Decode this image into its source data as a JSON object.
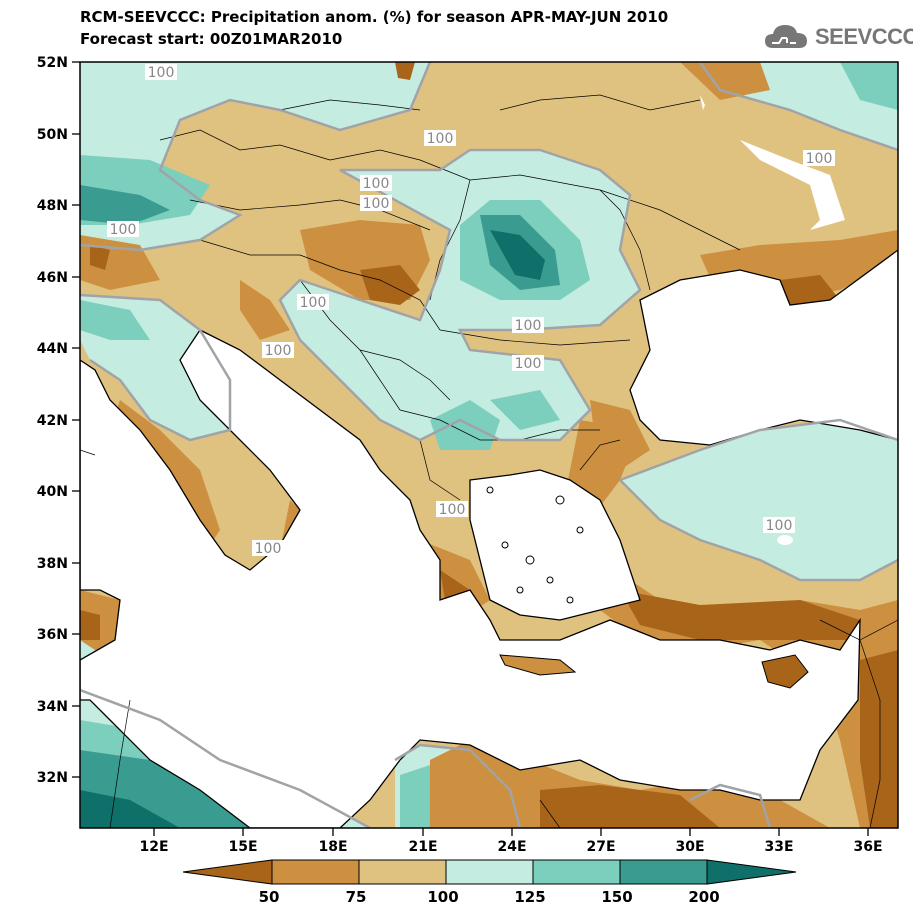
{
  "header": {
    "title_line1": "RCM-SEEVCCC: Precipitation anom. (%) for season APR-MAY-JUN 2010",
    "title_line2": "Forecast start: 00Z01MAR2010",
    "logo_text": "SEEVCCC"
  },
  "axes": {
    "lat_labels": [
      "52N",
      "50N",
      "48N",
      "46N",
      "44N",
      "42N",
      "40N",
      "38N",
      "36N",
      "34N",
      "32N"
    ],
    "lon_labels": [
      "12E",
      "15E",
      "18E",
      "21E",
      "24E",
      "27E",
      "30E",
      "33E",
      "36E"
    ]
  },
  "contour_labels": [
    "100",
    "100",
    "100",
    "100",
    "100",
    "100",
    "100",
    "100",
    "100",
    "100",
    "100",
    "100",
    "100"
  ],
  "colorbar": {
    "labels": [
      "50",
      "75",
      "100",
      "125",
      "150",
      "200"
    ],
    "colors": [
      "#a86418",
      "#cc9040",
      "#e0c280",
      "#c4ece0",
      "#7ccfbd",
      "#3a9c90",
      "#0e7068"
    ]
  },
  "colors": {
    "sea": "#ffffff",
    "dry": "#e0c280",
    "wet": "#c4ece0",
    "contour": "#a0a4a8"
  }
}
